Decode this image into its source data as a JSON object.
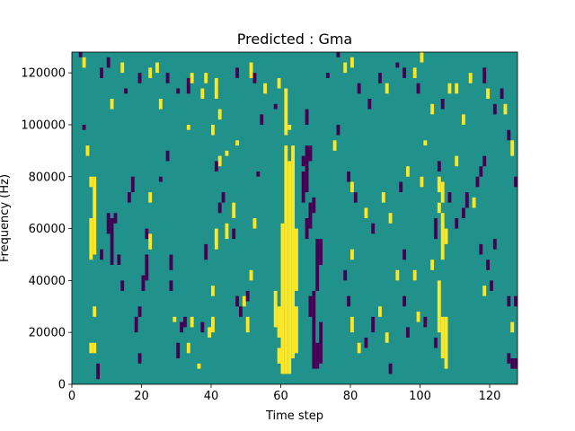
{
  "chart_data": {
    "type": "heatmap",
    "title": "Predicted : Gma",
    "xlabel": "Time step",
    "ylabel": "Frequency (Hz)",
    "xlim": [
      0,
      128
    ],
    "ylim": [
      0,
      128000
    ],
    "x_ticks": [
      0,
      20,
      40,
      60,
      80,
      100,
      120
    ],
    "y_ticks": [
      0,
      20000,
      40000,
      60000,
      80000,
      100000,
      120000
    ],
    "x_tick_labels": [
      "0",
      "20",
      "40",
      "60",
      "80",
      "100",
      "120"
    ],
    "y_tick_labels": [
      "0",
      "20000",
      "40000",
      "60000",
      "80000",
      "100000",
      "120000"
    ],
    "grid": false,
    "colormap": "viridis",
    "value_colors": {
      "-1": "#440154",
      "0": "#21918c",
      "1": "#fde725"
    },
    "background_value": 0,
    "row_height_hz": 2000,
    "cells": [
      [
        60,
        4000,
        62000,
        1
      ],
      [
        61,
        4000,
        92000,
        1
      ],
      [
        62,
        4000,
        86000,
        1
      ],
      [
        63,
        10000,
        92000,
        1
      ],
      [
        61,
        96000,
        114000,
        1
      ],
      [
        62,
        98000,
        100000,
        1
      ],
      [
        64,
        12000,
        30000,
        1
      ],
      [
        59,
        18000,
        30000,
        1
      ],
      [
        59,
        8000,
        14000,
        1
      ],
      [
        58,
        22000,
        36000,
        1
      ],
      [
        64,
        36000,
        60000,
        1
      ],
      [
        69,
        6000,
        36000,
        -1
      ],
      [
        70,
        6000,
        16000,
        -1
      ],
      [
        71,
        8000,
        24000,
        -1
      ],
      [
        68,
        26000,
        34000,
        -1
      ],
      [
        70,
        36000,
        56000,
        -1
      ],
      [
        71,
        46000,
        56000,
        -1
      ],
      [
        67,
        56000,
        64000,
        -1
      ],
      [
        68,
        60000,
        70000,
        -1
      ],
      [
        69,
        66000,
        72000,
        -1
      ],
      [
        66,
        70000,
        82000,
        -1
      ],
      [
        67,
        74000,
        92000,
        -1
      ],
      [
        68,
        86000,
        92000,
        -1
      ],
      [
        67,
        100000,
        106000,
        -1
      ],
      [
        66,
        84000,
        88000,
        -1
      ],
      [
        5,
        48000,
        64000,
        1
      ],
      [
        6,
        50000,
        80000,
        1
      ],
      [
        5,
        76000,
        80000,
        1
      ],
      [
        6,
        26000,
        30000,
        1
      ],
      [
        5,
        12000,
        16000,
        1
      ],
      [
        6,
        12000,
        16000,
        1
      ],
      [
        7,
        2000,
        8000,
        -1
      ],
      [
        10,
        58000,
        66000,
        -1
      ],
      [
        11,
        46000,
        64000,
        -1
      ],
      [
        12,
        62000,
        66000,
        -1
      ],
      [
        13,
        46000,
        50000,
        -1
      ],
      [
        8,
        48000,
        52000,
        -1
      ],
      [
        14,
        36000,
        40000,
        -1
      ],
      [
        19,
        8000,
        12000,
        -1
      ],
      [
        18,
        20000,
        26000,
        -1
      ],
      [
        19,
        26000,
        30000,
        -1
      ],
      [
        20,
        36000,
        42000,
        -1
      ],
      [
        21,
        40000,
        50000,
        -1
      ],
      [
        21,
        56000,
        60000,
        -1
      ],
      [
        22,
        70000,
        74000,
        1
      ],
      [
        22,
        52000,
        58000,
        1
      ],
      [
        17,
        74000,
        80000,
        -1
      ],
      [
        16,
        70000,
        74000,
        -1
      ],
      [
        25,
        78000,
        80000,
        -1
      ],
      [
        28,
        36000,
        40000,
        -1
      ],
      [
        28,
        44000,
        50000,
        -1
      ],
      [
        31,
        20000,
        24000,
        -1
      ],
      [
        30,
        10000,
        16000,
        -1
      ],
      [
        33,
        12000,
        16000,
        1
      ],
      [
        32,
        22000,
        26000,
        -1
      ],
      [
        34,
        22000,
        26000,
        1
      ],
      [
        29,
        24000,
        26000,
        1
      ],
      [
        36,
        6000,
        8000,
        1
      ],
      [
        37,
        20000,
        24000,
        -1
      ],
      [
        39,
        18000,
        22000,
        1
      ],
      [
        40,
        20000,
        26000,
        1
      ],
      [
        40,
        34000,
        38000,
        1
      ],
      [
        38,
        48000,
        54000,
        -1
      ],
      [
        41,
        52000,
        60000,
        1
      ],
      [
        42,
        66000,
        70000,
        -1
      ],
      [
        43,
        70000,
        74000,
        -1
      ],
      [
        44,
        56000,
        62000,
        1
      ],
      [
        46,
        56000,
        60000,
        -1
      ],
      [
        46,
        64000,
        70000,
        1
      ],
      [
        47,
        30000,
        34000,
        -1
      ],
      [
        48,
        26000,
        30000,
        -1
      ],
      [
        49,
        30000,
        34000,
        1
      ],
      [
        50,
        32000,
        36000,
        -1
      ],
      [
        50,
        20000,
        26000,
        1
      ],
      [
        51,
        40000,
        44000,
        1
      ],
      [
        52,
        60000,
        64000,
        1
      ],
      [
        53,
        80000,
        82000,
        -1
      ],
      [
        47,
        92000,
        94000,
        1
      ],
      [
        42,
        84000,
        88000,
        1
      ],
      [
        41,
        82000,
        86000,
        -1
      ],
      [
        41,
        110000,
        114000,
        1
      ],
      [
        42,
        102000,
        106000,
        1
      ],
      [
        44,
        88000,
        90000,
        1
      ],
      [
        40,
        96000,
        100000,
        1
      ],
      [
        33,
        98000,
        100000,
        1
      ],
      [
        27,
        86000,
        90000,
        -1
      ],
      [
        33,
        112000,
        118000,
        -1
      ],
      [
        37,
        110000,
        114000,
        1
      ],
      [
        38,
        116000,
        120000,
        1
      ],
      [
        41,
        114000,
        118000,
        1
      ],
      [
        47,
        118000,
        122000,
        -1
      ],
      [
        51,
        118000,
        124000,
        1
      ],
      [
        58,
        106000,
        108000,
        -1
      ],
      [
        15,
        112000,
        114000,
        -1
      ],
      [
        11,
        106000,
        110000,
        1
      ],
      [
        8,
        118000,
        122000,
        -1
      ],
      [
        3,
        98000,
        100000,
        -1
      ],
      [
        4,
        88000,
        92000,
        1
      ],
      [
        14,
        120000,
        124000,
        1
      ],
      [
        22,
        118000,
        122000,
        1
      ],
      [
        25,
        106000,
        110000,
        1
      ],
      [
        27,
        116000,
        120000,
        -1
      ],
      [
        30,
        112000,
        114000,
        -1
      ],
      [
        34,
        116000,
        120000,
        1
      ],
      [
        78,
        120000,
        124000,
        1
      ],
      [
        73,
        118000,
        120000,
        -1
      ],
      [
        75,
        90000,
        94000,
        1
      ],
      [
        76,
        96000,
        100000,
        -1
      ],
      [
        79,
        78000,
        82000,
        -1
      ],
      [
        80,
        74000,
        78000,
        1
      ],
      [
        81,
        70000,
        74000,
        -1
      ],
      [
        84,
        64000,
        68000,
        1
      ],
      [
        86,
        58000,
        62000,
        -1
      ],
      [
        89,
        70000,
        74000,
        1
      ],
      [
        91,
        62000,
        66000,
        1
      ],
      [
        80,
        48000,
        52000,
        1
      ],
      [
        78,
        40000,
        44000,
        -1
      ],
      [
        79,
        30000,
        34000,
        -1
      ],
      [
        80,
        20000,
        26000,
        1
      ],
      [
        82,
        12000,
        16000,
        1
      ],
      [
        84,
        14000,
        18000,
        -1
      ],
      [
        86,
        20000,
        26000,
        -1
      ],
      [
        88,
        26000,
        30000,
        1
      ],
      [
        90,
        16000,
        20000,
        1
      ],
      [
        91,
        4000,
        8000,
        -1
      ],
      [
        95,
        30000,
        34000,
        -1
      ],
      [
        96,
        18000,
        22000,
        -1
      ],
      [
        99,
        24000,
        28000,
        1
      ],
      [
        101,
        22000,
        26000,
        -1
      ],
      [
        104,
        14000,
        18000,
        -1
      ],
      [
        105,
        20000,
        40000,
        1
      ],
      [
        106,
        10000,
        26000,
        1
      ],
      [
        107,
        6000,
        26000,
        1
      ],
      [
        106,
        48000,
        66000,
        1
      ],
      [
        107,
        54000,
        60000,
        1
      ],
      [
        104,
        56000,
        64000,
        -1
      ],
      [
        105,
        66000,
        70000,
        1
      ],
      [
        105,
        74000,
        80000,
        1
      ],
      [
        106,
        70000,
        78000,
        1
      ],
      [
        108,
        70000,
        74000,
        -1
      ],
      [
        110,
        60000,
        64000,
        -1
      ],
      [
        112,
        64000,
        68000,
        -1
      ],
      [
        113,
        68000,
        74000,
        -1
      ],
      [
        115,
        68000,
        72000,
        1
      ],
      [
        116,
        76000,
        80000,
        -1
      ],
      [
        117,
        80000,
        84000,
        -1
      ],
      [
        118,
        84000,
        88000,
        -1
      ],
      [
        117,
        50000,
        54000,
        -1
      ],
      [
        119,
        44000,
        48000,
        -1
      ],
      [
        121,
        52000,
        56000,
        -1
      ],
      [
        118,
        34000,
        38000,
        1
      ],
      [
        120,
        36000,
        40000,
        -1
      ],
      [
        125,
        30000,
        34000,
        -1
      ],
      [
        126,
        20000,
        24000,
        1
      ],
      [
        125,
        8000,
        12000,
        -1
      ],
      [
        126,
        6000,
        10000,
        -1
      ],
      [
        127,
        6000,
        10000,
        -1
      ],
      [
        127,
        30000,
        34000,
        -1
      ],
      [
        127,
        76000,
        80000,
        -1
      ],
      [
        126,
        88000,
        94000,
        1
      ],
      [
        125,
        94000,
        98000,
        -1
      ],
      [
        123,
        110000,
        114000,
        -1
      ],
      [
        124,
        104000,
        108000,
        1
      ],
      [
        121,
        104000,
        108000,
        -1
      ],
      [
        119,
        110000,
        114000,
        1
      ],
      [
        118,
        116000,
        122000,
        -1
      ],
      [
        114,
        116000,
        120000,
        1
      ],
      [
        112,
        100000,
        104000,
        1
      ],
      [
        110,
        112000,
        116000,
        1
      ],
      [
        108,
        112000,
        116000,
        1
      ],
      [
        106,
        106000,
        110000,
        -1
      ],
      [
        103,
        104000,
        108000,
        1
      ],
      [
        101,
        92000,
        94000,
        1
      ],
      [
        99,
        112000,
        116000,
        -1
      ],
      [
        98,
        118000,
        122000,
        1
      ],
      [
        95,
        118000,
        122000,
        -1
      ],
      [
        93,
        122000,
        124000,
        -1
      ],
      [
        100,
        124000,
        128000,
        1
      ],
      [
        88,
        116000,
        120000,
        -1
      ],
      [
        90,
        112000,
        116000,
        1
      ],
      [
        85,
        106000,
        110000,
        -1
      ],
      [
        82,
        112000,
        116000,
        -1
      ],
      [
        80,
        122000,
        126000,
        1
      ],
      [
        76,
        126000,
        128000,
        -1
      ],
      [
        2,
        126000,
        128000,
        -1
      ],
      [
        3,
        122000,
        126000,
        1
      ],
      [
        10,
        122000,
        126000,
        -1
      ],
      [
        19,
        116000,
        120000,
        -1
      ],
      [
        24,
        120000,
        124000,
        1
      ],
      [
        59,
        114000,
        118000,
        1
      ],
      [
        52,
        116000,
        120000,
        -1
      ],
      [
        55,
        112000,
        116000,
        1
      ],
      [
        54,
        100000,
        104000,
        -1
      ],
      [
        110,
        84000,
        88000,
        1
      ],
      [
        105,
        82000,
        86000,
        -1
      ],
      [
        100,
        76000,
        80000,
        1
      ],
      [
        96,
        80000,
        84000,
        1
      ],
      [
        94,
        74000,
        78000,
        -1
      ],
      [
        103,
        44000,
        48000,
        1
      ],
      [
        98,
        40000,
        44000,
        1
      ],
      [
        95,
        48000,
        52000,
        -1
      ],
      [
        93,
        40000,
        44000,
        1
      ]
    ]
  }
}
